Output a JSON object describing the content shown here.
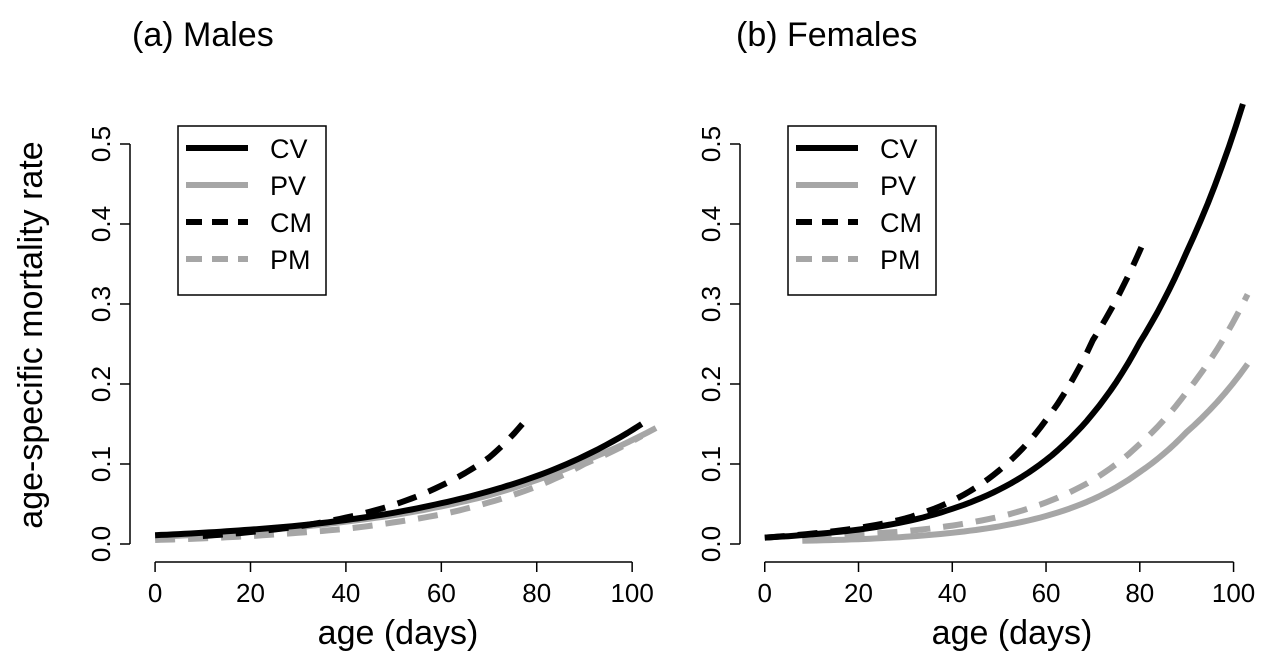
{
  "figure": {
    "ylabel": "age-specific mortality rate"
  },
  "chart_data": [
    {
      "type": "line",
      "title": "(a) Males",
      "xlabel": "age (days)",
      "ylabel": "age-specific mortality rate",
      "xlim": [
        -4,
        105
      ],
      "ylim": [
        -0.015,
        0.57
      ],
      "x_ticks": [
        0,
        20,
        40,
        60,
        80,
        100
      ],
      "y_ticks": [
        0.0,
        0.1,
        0.2,
        0.3,
        0.4,
        0.5
      ],
      "y_tick_labels": [
        "0.0",
        "0.1",
        "0.2",
        "0.3",
        "0.4",
        "0.5"
      ],
      "grid": false,
      "legend_position": "top-left",
      "series": [
        {
          "name": "CV",
          "color": "#000000",
          "dash": "solid",
          "x": [
            0,
            10,
            20,
            30,
            40,
            50,
            60,
            70,
            80,
            90,
            102
          ],
          "y": [
            0.011,
            0.014,
            0.018,
            0.023,
            0.03,
            0.039,
            0.051,
            0.066,
            0.085,
            0.11,
            0.15
          ]
        },
        {
          "name": "PV",
          "color": "#a6a6a6",
          "dash": "solid",
          "x": [
            0,
            10,
            20,
            30,
            40,
            50,
            60,
            70,
            80,
            90,
            105
          ],
          "y": [
            0.009,
            0.012,
            0.016,
            0.021,
            0.028,
            0.036,
            0.047,
            0.061,
            0.08,
            0.104,
            0.145
          ]
        },
        {
          "name": "CM",
          "color": "#000000",
          "dash": "dashed",
          "x": [
            10,
            20,
            30,
            40,
            50,
            60,
            70,
            77
          ],
          "y": [
            0.01,
            0.015,
            0.022,
            0.033,
            0.049,
            0.073,
            0.108,
            0.15
          ]
        },
        {
          "name": "PM",
          "color": "#a6a6a6",
          "dash": "dashed",
          "x": [
            0,
            10,
            20,
            30,
            40,
            50,
            60,
            70,
            80,
            90,
            102
          ],
          "y": [
            0.005,
            0.007,
            0.01,
            0.014,
            0.019,
            0.027,
            0.037,
            0.052,
            0.072,
            0.1,
            0.135
          ]
        }
      ]
    },
    {
      "type": "line",
      "title": "(b) Females",
      "xlabel": "age (days)",
      "ylabel": "",
      "xlim": [
        -4,
        105
      ],
      "ylim": [
        -0.015,
        0.57
      ],
      "x_ticks": [
        0,
        20,
        40,
        60,
        80,
        100
      ],
      "y_ticks": [
        0.0,
        0.1,
        0.2,
        0.3,
        0.4,
        0.5
      ],
      "y_tick_labels": [
        "0.0",
        "0.1",
        "0.2",
        "0.3",
        "0.4",
        "0.5"
      ],
      "grid": false,
      "legend_position": "top-left",
      "series": [
        {
          "name": "CV",
          "color": "#000000",
          "dash": "solid",
          "x": [
            0,
            10,
            20,
            30,
            40,
            50,
            60,
            70,
            80,
            90,
            102
          ],
          "y": [
            0.008,
            0.012,
            0.018,
            0.028,
            0.044,
            0.068,
            0.105,
            0.163,
            0.252,
            0.365,
            0.55
          ]
        },
        {
          "name": "PV",
          "color": "#a6a6a6",
          "dash": "solid",
          "x": [
            8,
            20,
            30,
            40,
            50,
            60,
            70,
            80,
            90,
            103
          ],
          "y": [
            0.004,
            0.006,
            0.009,
            0.014,
            0.022,
            0.035,
            0.056,
            0.09,
            0.14,
            0.225
          ]
        },
        {
          "name": "CM",
          "color": "#000000",
          "dash": "dashed",
          "x": [
            0,
            10,
            20,
            30,
            40,
            50,
            60,
            70,
            81
          ],
          "y": [
            0.008,
            0.013,
            0.02,
            0.032,
            0.054,
            0.092,
            0.155,
            0.255,
            0.38
          ]
        },
        {
          "name": "PM",
          "color": "#a6a6a6",
          "dash": "dashed",
          "x": [
            10,
            20,
            30,
            40,
            50,
            60,
            70,
            80,
            90,
            103
          ],
          "y": [
            0.008,
            0.012,
            0.016,
            0.023,
            0.034,
            0.052,
            0.08,
            0.125,
            0.19,
            0.312
          ]
        }
      ]
    }
  ]
}
